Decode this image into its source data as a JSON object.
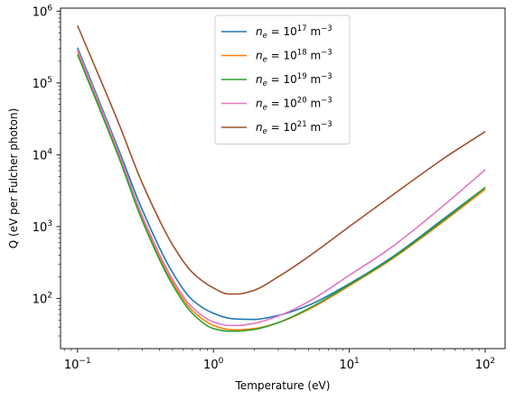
{
  "chart_data": {
    "type": "line",
    "xlabel": "Temperature (eV)",
    "ylabel": "Q (eV per Fulcher photon)",
    "xscale": "log",
    "yscale": "log",
    "xlim": [
      0.075,
      140
    ],
    "ylim": [
      20,
      1100000
    ],
    "x_ticks": [
      {
        "value": 0.1,
        "base": "10",
        "exp": "−1"
      },
      {
        "value": 1,
        "base": "10",
        "exp": "0"
      },
      {
        "value": 10,
        "base": "10",
        "exp": "1"
      },
      {
        "value": 100,
        "base": "10",
        "exp": "2"
      }
    ],
    "y_ticks": [
      {
        "value": 100,
        "base": "10",
        "exp": "2"
      },
      {
        "value": 1000,
        "base": "10",
        "exp": "3"
      },
      {
        "value": 10000,
        "base": "10",
        "exp": "4"
      },
      {
        "value": 100000,
        "base": "10",
        "exp": "5"
      },
      {
        "value": 1000000,
        "base": "10",
        "exp": "6"
      }
    ],
    "legend_position": "top-center",
    "x": [
      0.1,
      0.2,
      0.3,
      0.5,
      0.7,
      1.0,
      1.3,
      1.5,
      2.0,
      3.0,
      5.0,
      10,
      20,
      50,
      100
    ],
    "series": [
      {
        "name_prefix": "n",
        "name_sub": "e",
        "name_mid": " = 10",
        "name_sup": "17",
        "name_unit": " m",
        "name_unit_sup": "−3",
        "color": "#1f77b4",
        "values": [
          310000,
          12000,
          1700,
          230,
          95,
          62,
          53,
          51.5,
          51,
          58,
          80,
          160,
          360,
          1300,
          3500
        ]
      },
      {
        "name_prefix": "n",
        "name_sub": "e",
        "name_mid": " = 10",
        "name_sup": "18",
        "name_unit": " m",
        "name_unit_sup": "−3",
        "color": "#ff7f0e",
        "values": [
          280000,
          10000,
          1300,
          170,
          68,
          42,
          37,
          36.5,
          38,
          46,
          70,
          150,
          340,
          1200,
          3300
        ]
      },
      {
        "name_prefix": "n",
        "name_sub": "e",
        "name_mid": " = 10",
        "name_sup": "19",
        "name_unit": " m",
        "name_unit_sup": "−3",
        "color": "#2ca02c",
        "values": [
          250000,
          9500,
          1200,
          155,
          62,
          38,
          35,
          35,
          37,
          46,
          72,
          155,
          350,
          1250,
          3500
        ]
      },
      {
        "name_prefix": "n",
        "name_sub": "e",
        "name_mid": " = 10",
        "name_sup": "20",
        "name_unit": " m",
        "name_unit_sup": "−3",
        "color": "#e377c2",
        "values": [
          290000,
          11000,
          1400,
          185,
          75,
          47,
          42,
          42,
          45,
          57,
          90,
          210,
          500,
          2000,
          6200
        ]
      },
      {
        "name_prefix": "n",
        "name_sub": "e",
        "name_mid": " = 10",
        "name_sup": "21",
        "name_unit": " m",
        "name_unit_sup": "−3",
        "color": "#a0522d",
        "values": [
          630000,
          28000,
          4000,
          560,
          230,
          140,
          115,
          115,
          130,
          200,
          380,
          1000,
          2600,
          9000,
          21000
        ]
      }
    ]
  }
}
